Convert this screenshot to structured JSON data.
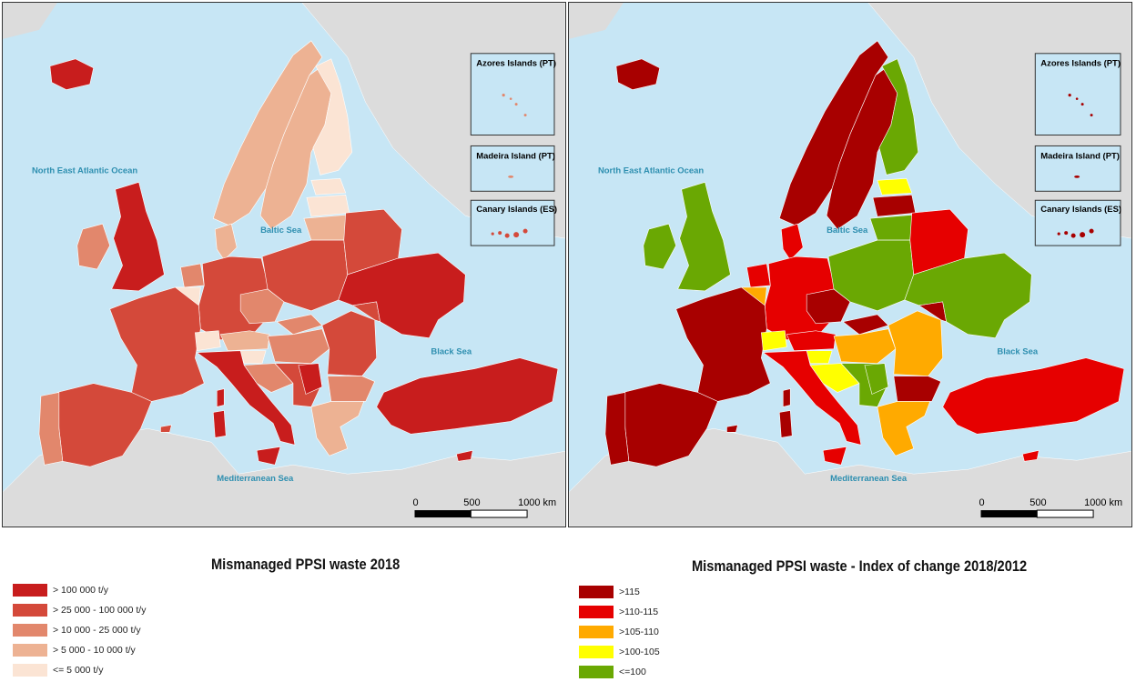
{
  "left_map": {
    "sea_labels": {
      "atlantic": "North East Atlantic Ocean",
      "baltic": "Baltic Sea",
      "black": "Black Sea",
      "mediterranean": "Mediterranean Sea"
    },
    "insets": [
      "Azores Islands (PT)",
      "Madeira Island (PT)",
      "Canary Islands (ES)"
    ],
    "scale": {
      "start": "0",
      "mid": "500",
      "end": "1000 km"
    },
    "legend": {
      "title": "Mismanaged PPSI waste 2018",
      "items": [
        {
          "label": "> 100 000 t/y",
          "color": "#c81d1d"
        },
        {
          "label": "> 25 000 - 100 000 t/y",
          "color": "#d4493a"
        },
        {
          "label": "> 10 000 - 25 000 t/y",
          "color": "#e2876c"
        },
        {
          "label": "> 5 000 - 10 000 t/y",
          "color": "#edb293"
        },
        {
          "label": "<= 5 000 t/y",
          "color": "#fbe4d4"
        }
      ]
    }
  },
  "right_map": {
    "sea_labels": {
      "atlantic": "North East Atlantic Ocean",
      "baltic": "Baltic Sea",
      "black": "Black Sea",
      "mediterranean": "Mediterranean Sea"
    },
    "insets": [
      "Azores Islands (PT)",
      "Madeira Island (PT)",
      "Canary Islands (ES)"
    ],
    "scale": {
      "start": "0",
      "mid": "500",
      "end": "1000 km"
    },
    "legend": {
      "title": "Mismanaged PPSI waste - Index of change 2018/2012",
      "items": [
        {
          "label": ">115",
          "color": "#a80000"
        },
        {
          "label": ">110-115",
          "color": "#e60000"
        },
        {
          "label": ">105-110",
          "color": "#ffaa00"
        },
        {
          "label": ">100-105",
          "color": "#ffff00"
        },
        {
          "label": "<=100",
          "color": "#6aa803"
        }
      ]
    }
  },
  "colors": {
    "sea": "#c7e6f5",
    "non_eu_land": "#dcdcdc",
    "border": "#ffffff"
  }
}
